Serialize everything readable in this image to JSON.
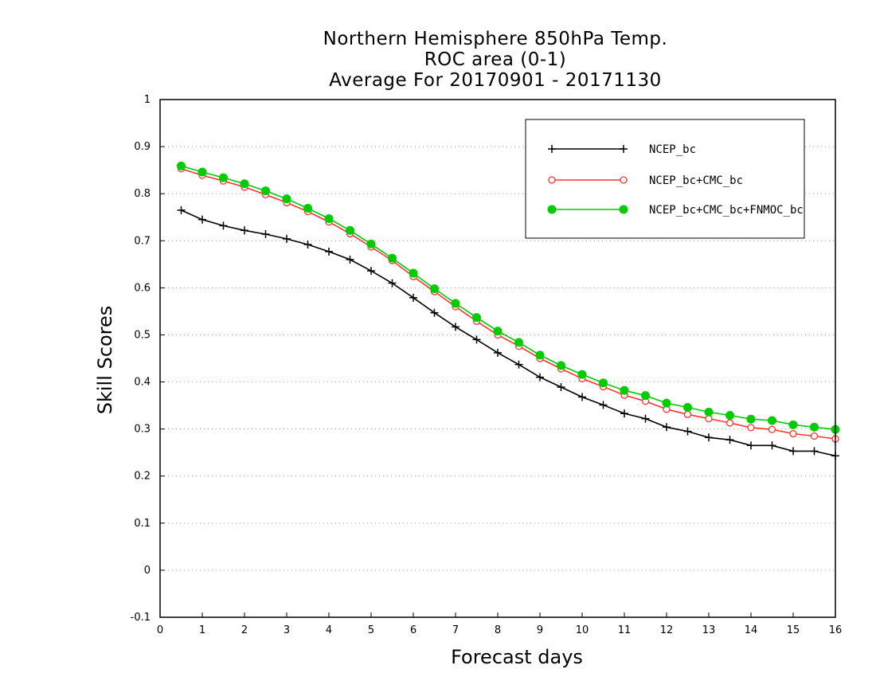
{
  "chart_data": {
    "type": "line",
    "title": [
      "Northern Hemisphere 850hPa Temp.",
      "ROC area (0-1)",
      "Average For 20170901 - 20171130"
    ],
    "xlabel": "Forecast days",
    "ylabel": "Skill Scores",
    "xlim": [
      0,
      16
    ],
    "ylim": [
      -0.1,
      1
    ],
    "xticks": [
      0,
      1,
      2,
      3,
      4,
      5,
      6,
      7,
      8,
      9,
      10,
      11,
      12,
      13,
      14,
      15,
      16
    ],
    "yticks": [
      -0.1,
      0,
      0.1,
      0.2,
      0.3,
      0.4,
      0.5,
      0.6,
      0.7,
      0.8,
      0.9,
      1
    ],
    "ytick_labels": [
      "-0.1",
      "0",
      "0.1",
      "0.2",
      "0.3",
      "0.4",
      "0.5",
      "0.6",
      "0.7",
      "0.8",
      "0.9",
      "1"
    ],
    "grid": "horizontal dotted",
    "legend_position": "top-right",
    "x": [
      0.5,
      1,
      1.5,
      2,
      2.5,
      3,
      3.5,
      4,
      4.5,
      5,
      5.5,
      6,
      6.5,
      7,
      7.5,
      8,
      8.5,
      9,
      9.5,
      10,
      10.5,
      11,
      11.5,
      12,
      12.5,
      13,
      13.5,
      14,
      14.5,
      15,
      15.5,
      16
    ],
    "series": [
      {
        "name": "NCEP_bc",
        "color": "#000000",
        "marker": "plus",
        "values": [
          0.765,
          0.745,
          0.732,
          0.722,
          0.714,
          0.704,
          0.692,
          0.677,
          0.66,
          0.636,
          0.61,
          0.579,
          0.547,
          0.517,
          0.49,
          0.462,
          0.437,
          0.41,
          0.389,
          0.368,
          0.351,
          0.333,
          0.322,
          0.304,
          0.295,
          0.282,
          0.277,
          0.265,
          0.265,
          0.253,
          0.253,
          0.243
        ]
      },
      {
        "name": "NCEP_bc+CMC_bc",
        "color": "#ff3333",
        "marker": "open-circle",
        "values": [
          0.853,
          0.839,
          0.827,
          0.814,
          0.798,
          0.781,
          0.762,
          0.74,
          0.715,
          0.687,
          0.658,
          0.624,
          0.592,
          0.56,
          0.529,
          0.5,
          0.476,
          0.45,
          0.428,
          0.407,
          0.39,
          0.372,
          0.359,
          0.342,
          0.331,
          0.322,
          0.313,
          0.303,
          0.299,
          0.29,
          0.285,
          0.279
        ]
      },
      {
        "name": "NCEP_bc+CMC_bc+FNMOC_bc",
        "color": "#00cc00",
        "marker": "filled-circle",
        "values": [
          0.859,
          0.846,
          0.834,
          0.821,
          0.806,
          0.789,
          0.769,
          0.747,
          0.722,
          0.693,
          0.663,
          0.631,
          0.598,
          0.567,
          0.537,
          0.508,
          0.484,
          0.457,
          0.435,
          0.416,
          0.398,
          0.382,
          0.371,
          0.355,
          0.346,
          0.336,
          0.329,
          0.321,
          0.318,
          0.309,
          0.304,
          0.299
        ]
      }
    ]
  }
}
